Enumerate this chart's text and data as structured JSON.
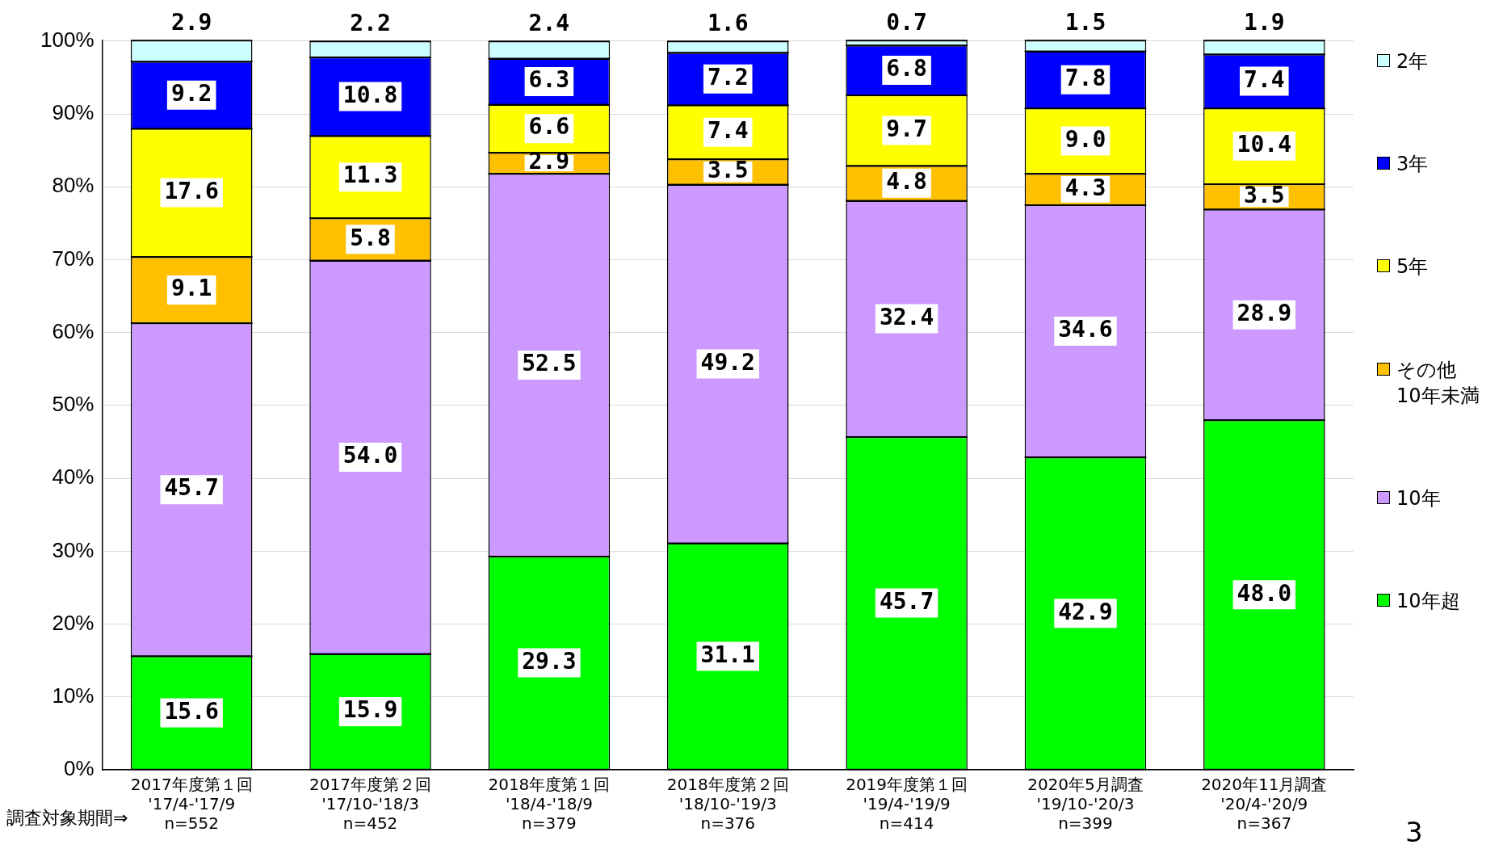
{
  "chart_data": {
    "type": "bar",
    "stacked": true,
    "categories": [
      "2017年度第１回\n'17/4-'17/9\nn=552",
      "2017年度第２回\n'17/10-'18/3\nn=452",
      "2018年度第１回\n'18/4-'18/9\nn=379",
      "2018年度第２回\n'18/10-'19/3\nn=376",
      "2019年度第１回\n'19/4-'19/9\nn=414",
      "2020年5月調査\n'19/10-'20/3\nn=399",
      "2020年11月調査\n'20/4-'20/9\nn=367"
    ],
    "series": [
      {
        "name": "10年超",
        "color": "#00ff00",
        "values": [
          15.6,
          15.9,
          29.3,
          31.1,
          45.7,
          42.9,
          48.0
        ],
        "value_labels": [
          "15.6",
          "15.9",
          "29.3",
          "31.1",
          "45.7",
          "42.9",
          "48.0"
        ]
      },
      {
        "name": "10年",
        "color": "#cc99ff",
        "values": [
          45.7,
          54.0,
          52.5,
          49.2,
          32.4,
          34.6,
          28.9
        ],
        "value_labels": [
          "45.7",
          "54.0",
          "52.5",
          "49.2",
          "32.4",
          "34.6",
          "28.9"
        ]
      },
      {
        "name": "その他\n10年未満",
        "color": "#ffc000",
        "values": [
          9.1,
          5.8,
          2.9,
          3.5,
          4.8,
          4.3,
          3.5
        ],
        "value_labels": [
          "9.1",
          "5.8",
          "2.9",
          "3.5",
          "4.8",
          "4.3",
          "3.5"
        ]
      },
      {
        "name": "5年",
        "color": "#ffff00",
        "values": [
          17.6,
          11.3,
          6.6,
          7.4,
          9.7,
          9.0,
          10.4
        ],
        "value_labels": [
          "17.6",
          "11.3",
          "6.6",
          "7.4",
          "9.7",
          "9.0",
          "10.4"
        ]
      },
      {
        "name": "3年",
        "color": "#0000ff",
        "values": [
          9.2,
          10.8,
          6.3,
          7.2,
          6.8,
          7.8,
          7.4
        ],
        "value_labels": [
          "9.2",
          "10.8",
          "6.3",
          "7.2",
          "6.8",
          "7.8",
          "7.4"
        ]
      },
      {
        "name": "2年",
        "color": "#ccffff",
        "values": [
          2.9,
          2.2,
          2.4,
          1.6,
          0.7,
          1.5,
          1.9
        ],
        "value_labels": [
          "2.9",
          "2.2",
          "2.4",
          "1.6",
          "0.7",
          "1.5",
          "1.9"
        ]
      }
    ],
    "ylim": [
      0,
      100.1
    ],
    "yticks": [
      {
        "value": 0,
        "label": "0%"
      },
      {
        "value": 10,
        "label": "10%"
      },
      {
        "value": 20,
        "label": "20%"
      },
      {
        "value": 30,
        "label": "30%"
      },
      {
        "value": 40,
        "label": "40%"
      },
      {
        "value": 50,
        "label": "50%"
      },
      {
        "value": 60,
        "label": "60%"
      },
      {
        "value": 70,
        "label": "70%"
      },
      {
        "value": 80,
        "label": "80%"
      },
      {
        "value": 90,
        "label": "90%"
      },
      {
        "value": 100,
        "label": "100%"
      }
    ],
    "grid": "y",
    "legend": "right",
    "annotations": [
      "調査対象期間⇒",
      "3"
    ]
  }
}
